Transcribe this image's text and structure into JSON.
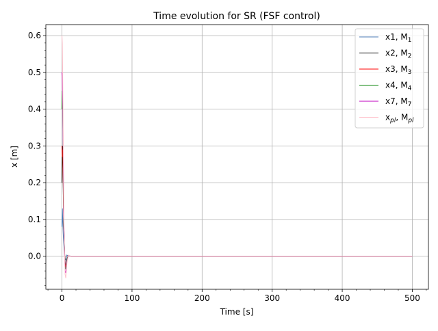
{
  "chart_data": {
    "type": "line",
    "title": "Time evolution for SR (FSF control)",
    "xlabel": "Time [s]",
    "ylabel": "x [m]",
    "xlim": [
      -23,
      523
    ],
    "ylim": [
      -0.09,
      0.63
    ],
    "x_ticks": [
      0,
      100,
      200,
      300,
      400,
      500
    ],
    "y_ticks": [
      0.0,
      0.1,
      0.2,
      0.3,
      0.4,
      0.5,
      0.6
    ],
    "x_tick_labels": [
      "0",
      "100",
      "200",
      "300",
      "400",
      "500"
    ],
    "y_tick_labels": [
      "0.0",
      "0.1",
      "0.2",
      "0.3",
      "0.4",
      "0.5",
      "0.6"
    ],
    "grid": true,
    "legend_position": "top-right",
    "series": [
      {
        "name": "x1",
        "label_base": "x1, M",
        "label_sub": "1",
        "color": "#4a79b5",
        "x": [
          0,
          0.6,
          1.2,
          2.0,
          3.0,
          4.0,
          5.5,
          7.0,
          9.0,
          12.0,
          20,
          500
        ],
        "y": [
          0.08,
          0.13,
          0.09,
          0.05,
          0.02,
          -0.005,
          -0.01,
          0.003,
          0.001,
          0.0,
          0.0,
          0.0
        ]
      },
      {
        "name": "x2",
        "label_base": "x2, M",
        "label_sub": "2",
        "color": "#000000",
        "x": [
          0,
          0.6,
          1.2,
          2.0,
          3.0,
          4.0,
          5.0,
          6.0,
          7.5,
          9.0,
          12.0,
          20,
          500
        ],
        "y": [
          0.2,
          0.3,
          0.27,
          0.15,
          0.06,
          0.0,
          -0.03,
          -0.02,
          -0.005,
          0.002,
          0.0,
          0.0,
          0.0
        ]
      },
      {
        "name": "x3",
        "label_base": "x3, M",
        "label_sub": "3",
        "color": "#ff0000",
        "x": [
          0,
          0.5,
          1.0,
          1.8,
          2.5,
          3.5,
          4.5,
          5.5,
          7.0,
          9.0,
          12.0,
          20,
          500
        ],
        "y": [
          0.3,
          0.27,
          0.29,
          0.2,
          0.09,
          0.02,
          -0.02,
          -0.03,
          -0.01,
          0.002,
          0.0,
          0.0,
          0.0
        ]
      },
      {
        "name": "x4",
        "label_base": "x4, M",
        "label_sub": "4",
        "color": "#008000",
        "x": [
          0,
          0.5,
          1.0,
          1.8,
          2.5,
          3.5,
          4.5,
          5.5,
          7.0,
          9.0,
          12.0,
          20,
          500
        ],
        "y": [
          0.4,
          0.45,
          0.4,
          0.25,
          0.1,
          0.02,
          -0.03,
          -0.035,
          -0.01,
          0.002,
          0.0,
          0.0,
          0.0
        ]
      },
      {
        "name": "x7",
        "label_base": "x7, M",
        "label_sub": "7",
        "color": "#bf00bf",
        "x": [
          0,
          0.5,
          1.0,
          1.8,
          2.5,
          3.5,
          4.5,
          5.5,
          7.0,
          9.0,
          12.0,
          20,
          500
        ],
        "y": [
          0.5,
          0.49,
          0.42,
          0.28,
          0.12,
          0.02,
          -0.04,
          -0.045,
          -0.015,
          0.002,
          0.0,
          0.0,
          0.0
        ]
      },
      {
        "name": "xpl",
        "label_base": "x",
        "label_base_sub": "pl",
        "label_mid": ", M",
        "label_sub": "pl",
        "color": "#ffc0cb",
        "x": [
          0,
          0.5,
          1.0,
          1.8,
          2.5,
          3.5,
          4.5,
          5.5,
          7.0,
          9.0,
          12.0,
          20,
          500
        ],
        "y": [
          0.6,
          0.58,
          0.5,
          0.32,
          0.14,
          0.02,
          -0.05,
          -0.06,
          -0.02,
          0.003,
          0.0,
          0.0,
          0.0
        ]
      }
    ]
  }
}
